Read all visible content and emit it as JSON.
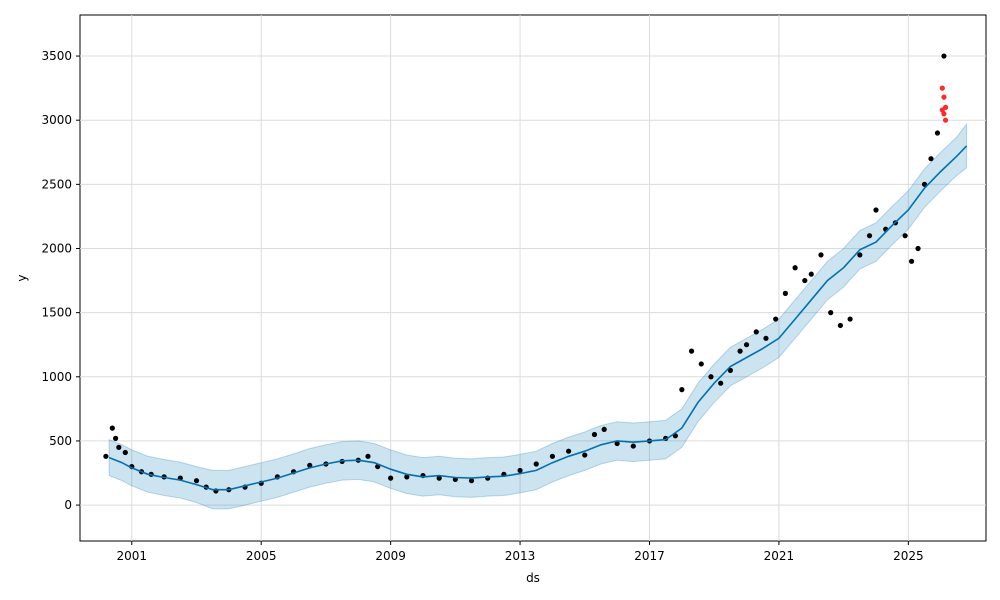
{
  "chart_data": {
    "type": "line",
    "title": "",
    "xlabel": "ds",
    "ylabel": "y",
    "xlim": [
      1999.4,
      2027.4
    ],
    "ylim": [
      -280,
      3820
    ],
    "x_ticks": [
      2001,
      2005,
      2009,
      2013,
      2017,
      2021,
      2025
    ],
    "x_tick_labels": [
      "2001",
      "2005",
      "2009",
      "2013",
      "2017",
      "2021",
      "2025"
    ],
    "y_ticks": [
      0,
      500,
      1000,
      1500,
      2000,
      2500,
      3000,
      3500
    ],
    "y_tick_labels": [
      "0",
      "500",
      "1000",
      "1500",
      "2000",
      "2500",
      "3000",
      "3500"
    ],
    "grid": true,
    "colors": {
      "forecast_line": "#0072B2",
      "interval_fill": "#0072B2",
      "actual_points": "#000000",
      "outlier_points": "#ff2a2a",
      "grid": "#dcdcdc"
    },
    "series": [
      {
        "role": "forecast",
        "x": [
          2000.3,
          2000.7,
          2001.0,
          2001.5,
          2002.0,
          2002.5,
          2003.0,
          2003.5,
          2004.0,
          2004.5,
          2005.0,
          2005.5,
          2006.0,
          2006.5,
          2007.0,
          2007.5,
          2008.0,
          2008.5,
          2009.0,
          2009.5,
          2010.0,
          2010.5,
          2011.0,
          2011.5,
          2012.0,
          2012.5,
          2013.0,
          2013.5,
          2014.0,
          2014.5,
          2015.0,
          2015.5,
          2016.0,
          2016.5,
          2017.0,
          2017.5,
          2018.0,
          2018.5,
          2019.0,
          2019.5,
          2020.0,
          2020.5,
          2021.0,
          2021.5,
          2022.0,
          2022.5,
          2023.0,
          2023.5,
          2024.0,
          2024.5,
          2025.0,
          2025.5,
          2026.0,
          2026.5,
          2026.8
        ],
        "y": [
          370,
          330,
          290,
          240,
          215,
          195,
          160,
          120,
          120,
          150,
          180,
          210,
          250,
          290,
          320,
          345,
          350,
          330,
          280,
          240,
          220,
          230,
          215,
          210,
          220,
          225,
          245,
          270,
          330,
          380,
          420,
          470,
          500,
          490,
          500,
          510,
          600,
          800,
          950,
          1080,
          1150,
          1220,
          1300,
          1450,
          1600,
          1750,
          1850,
          1990,
          2050,
          2180,
          2300,
          2470,
          2600,
          2720,
          2800
        ]
      },
      {
        "role": "uncertainty",
        "x": [
          2000.3,
          2000.7,
          2001.0,
          2001.5,
          2002.0,
          2002.5,
          2003.0,
          2003.5,
          2004.0,
          2004.5,
          2005.0,
          2005.5,
          2006.0,
          2006.5,
          2007.0,
          2007.5,
          2008.0,
          2008.5,
          2009.0,
          2009.5,
          2010.0,
          2010.5,
          2011.0,
          2011.5,
          2012.0,
          2012.5,
          2013.0,
          2013.5,
          2014.0,
          2014.5,
          2015.0,
          2015.5,
          2016.0,
          2016.5,
          2017.0,
          2017.5,
          2018.0,
          2018.5,
          2019.0,
          2019.5,
          2020.0,
          2020.5,
          2021.0,
          2021.5,
          2022.0,
          2022.5,
          2023.0,
          2023.5,
          2024.0,
          2024.5,
          2025.0,
          2025.5,
          2026.0,
          2026.5,
          2026.8
        ],
        "lower": [
          230,
          190,
          150,
          100,
          75,
          55,
          20,
          -30,
          -30,
          0,
          30,
          60,
          100,
          140,
          170,
          195,
          200,
          180,
          130,
          90,
          70,
          80,
          65,
          60,
          70,
          75,
          95,
          120,
          180,
          230,
          270,
          320,
          350,
          340,
          350,
          360,
          450,
          650,
          800,
          930,
          1000,
          1070,
          1150,
          1300,
          1450,
          1600,
          1700,
          1840,
          1900,
          2030,
          2150,
          2320,
          2450,
          2570,
          2630
        ],
        "upper": [
          510,
          470,
          430,
          380,
          355,
          335,
          300,
          270,
          270,
          300,
          330,
          360,
          400,
          440,
          470,
          495,
          500,
          480,
          430,
          390,
          370,
          380,
          365,
          360,
          370,
          375,
          395,
          420,
          480,
          530,
          570,
          620,
          650,
          640,
          650,
          660,
          750,
          950,
          1100,
          1230,
          1300,
          1370,
          1450,
          1600,
          1750,
          1900,
          2000,
          2140,
          2200,
          2330,
          2450,
          2620,
          2750,
          2870,
          2970
        ]
      },
      {
        "role": "actual",
        "x": [
          2000.2,
          2000.4,
          2000.5,
          2000.6,
          2000.8,
          2001.0,
          2001.3,
          2001.6,
          2002.0,
          2002.5,
          2003.0,
          2003.3,
          2003.6,
          2004.0,
          2004.5,
          2005.0,
          2005.5,
          2006.0,
          2006.5,
          2007.0,
          2007.5,
          2008.0,
          2008.3,
          2008.6,
          2009.0,
          2009.5,
          2010.0,
          2010.5,
          2011.0,
          2011.5,
          2012.0,
          2012.5,
          2013.0,
          2013.5,
          2014.0,
          2014.5,
          2015.0,
          2015.3,
          2015.6,
          2016.0,
          2016.5,
          2017.0,
          2017.5,
          2017.8,
          2018.0,
          2018.3,
          2018.6,
          2018.9,
          2019.2,
          2019.5,
          2019.8,
          2020.0,
          2020.3,
          2020.6,
          2020.9,
          2021.2,
          2021.5,
          2021.8,
          2022.0,
          2022.3,
          2022.6,
          2022.9,
          2023.2,
          2023.5,
          2023.8,
          2024.0,
          2024.3,
          2024.6,
          2024.9,
          2025.1,
          2025.3,
          2025.5,
          2025.7,
          2025.9,
          2026.1
        ],
        "y": [
          380,
          600,
          520,
          450,
          410,
          300,
          260,
          240,
          220,
          210,
          190,
          140,
          110,
          120,
          140,
          170,
          220,
          260,
          310,
          320,
          340,
          350,
          380,
          300,
          210,
          220,
          230,
          210,
          200,
          190,
          210,
          240,
          270,
          320,
          380,
          420,
          390,
          550,
          590,
          480,
          460,
          500,
          520,
          540,
          900,
          1200,
          1100,
          1000,
          950,
          1050,
          1200,
          1250,
          1350,
          1300,
          1450,
          1650,
          1850,
          1750,
          1800,
          1950,
          1500,
          1400,
          1450,
          1950,
          2100,
          2300,
          2150,
          2200,
          2100,
          1900,
          2000,
          2500,
          2700,
          2900,
          3500
        ]
      },
      {
        "role": "outliers",
        "x": [
          2026.05,
          2026.1,
          2026.15,
          2026.1,
          2026.15,
          2026.05
        ],
        "y": [
          3250,
          3180,
          3100,
          3050,
          3000,
          3080
        ]
      }
    ]
  }
}
